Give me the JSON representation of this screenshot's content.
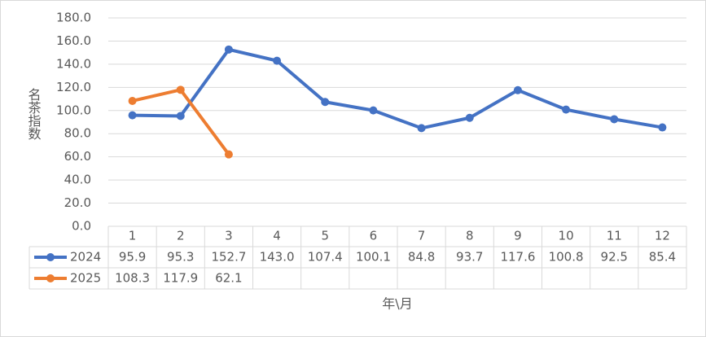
{
  "chart_data": {
    "type": "line",
    "y_axis_label": "名茶指数",
    "x_axis_label": "年\\月",
    "categories": [
      "1",
      "2",
      "3",
      "4",
      "5",
      "6",
      "7",
      "8",
      "9",
      "10",
      "11",
      "12"
    ],
    "series": [
      {
        "name": "2024",
        "color": "#4472c4",
        "values": [
          95.9,
          95.3,
          152.7,
          143.0,
          107.4,
          100.1,
          84.8,
          93.7,
          117.6,
          100.8,
          92.5,
          85.4
        ],
        "value_labels": [
          "95.9",
          "95.3",
          "152.7",
          "143.0",
          "107.4",
          "100.1",
          "84.8",
          "93.7",
          "117.6",
          "100.8",
          "92.5",
          "85.4"
        ]
      },
      {
        "name": "2025",
        "color": "#ed7d31",
        "values": [
          108.3,
          117.9,
          62.1,
          null,
          null,
          null,
          null,
          null,
          null,
          null,
          null,
          null
        ],
        "value_labels": [
          "108.3",
          "117.9",
          "62.1",
          null,
          null,
          null,
          null,
          null,
          null,
          null,
          null,
          null
        ]
      }
    ],
    "ylim": [
      0,
      180
    ],
    "yticks": [
      {
        "value": 0,
        "label": "0.0"
      },
      {
        "value": 20,
        "label": "20.0"
      },
      {
        "value": 40,
        "label": "40.0"
      },
      {
        "value": 60,
        "label": "60.0"
      },
      {
        "value": 80,
        "label": "80.0"
      },
      {
        "value": 100,
        "label": "100.0"
      },
      {
        "value": 120,
        "label": "120.0"
      },
      {
        "value": 140,
        "label": "140.0"
      },
      {
        "value": 160,
        "label": "160.0"
      },
      {
        "value": 180,
        "label": "180.0"
      }
    ],
    "grid": true,
    "data_table": true
  }
}
